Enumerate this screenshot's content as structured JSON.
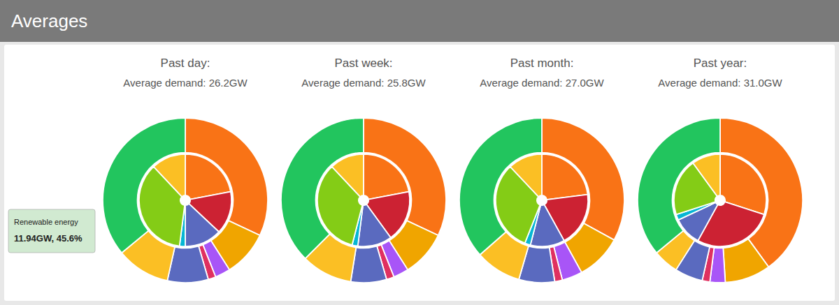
{
  "title": "Averages",
  "chart_data": [
    {
      "type": "pie",
      "title": "Past day:",
      "subtitle": "Average demand: 26.2GW",
      "series": [
        {
          "values": [
            32,
            9,
            3,
            1.5,
            8,
            10.5,
            36
          ],
          "colors": [
            "#f97316",
            "#f0a500",
            "#a855f7",
            "#e03060",
            "#5a6abf",
            "#fbbf24",
            "#22c55e"
          ]
        },
        {
          "values": [
            22,
            15,
            13,
            2,
            36,
            12
          ],
          "colors": [
            "#f97316",
            "#cc2233",
            "#5a6abf",
            "#06b6d4",
            "#84cc16",
            "#fbbf24"
          ]
        }
      ],
      "annotations": [
        "Renewable energy",
        "11.94GW, 45.6%"
      ]
    },
    {
      "type": "pie",
      "title": "Past week:",
      "subtitle": "Average demand: 25.8GW",
      "series": [
        {
          "values": [
            32,
            9,
            3,
            1.5,
            7,
            10,
            37.5
          ],
          "colors": [
            "#f97316",
            "#f0a500",
            "#a855f7",
            "#e03060",
            "#5a6abf",
            "#fbbf24",
            "#22c55e"
          ]
        },
        {
          "values": [
            22,
            18,
            12,
            2,
            34,
            12
          ],
          "colors": [
            "#f97316",
            "#cc2233",
            "#5a6abf",
            "#06b6d4",
            "#84cc16",
            "#fbbf24"
          ]
        }
      ]
    },
    {
      "type": "pie",
      "title": "Past month:",
      "subtitle": "Average demand: 27.0GW",
      "series": [
        {
          "values": [
            33,
            9,
            4,
            1.5,
            7,
            9,
            36.5
          ],
          "colors": [
            "#f97316",
            "#f0a500",
            "#a855f7",
            "#e03060",
            "#5a6abf",
            "#fbbf24",
            "#22c55e"
          ]
        },
        {
          "values": [
            23,
            19,
            12,
            2,
            32,
            12
          ],
          "colors": [
            "#f97316",
            "#cc2233",
            "#5a6abf",
            "#06b6d4",
            "#84cc16",
            "#fbbf24"
          ]
        }
      ]
    },
    {
      "type": "pie",
      "title": "Past year:",
      "subtitle": "Average demand: 31.0GW",
      "series": [
        {
          "values": [
            40,
            9,
            3,
            1.5,
            5.5,
            5,
            36
          ],
          "colors": [
            "#f97316",
            "#f0a500",
            "#a855f7",
            "#e03060",
            "#5a6abf",
            "#fbbf24",
            "#22c55e"
          ]
        },
        {
          "values": [
            30,
            28,
            10,
            2,
            20,
            10
          ],
          "colors": [
            "#f97316",
            "#cc2233",
            "#5a6abf",
            "#06b6d4",
            "#84cc16",
            "#fbbf24"
          ]
        }
      ]
    }
  ]
}
